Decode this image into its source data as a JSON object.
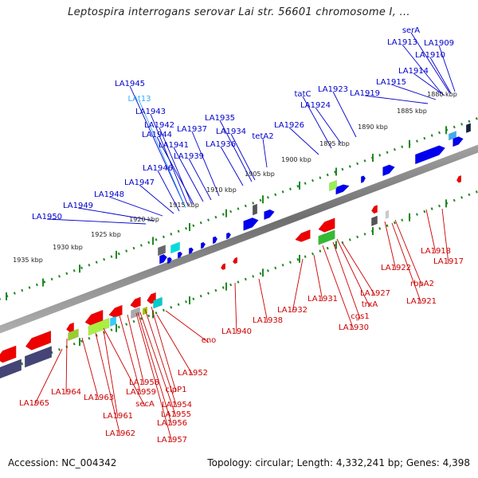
{
  "title": "Leptospira interrogans serovar Lai str. 56601 chromosome I, ...",
  "footer": {
    "accession": "Accession: NC_004342",
    "summary": "Topology: circular; Length: 4,332,241 bp; Genes: 4,398"
  },
  "colors": {
    "forward_label": "#0000cc",
    "reverse_label": "#cc0000",
    "trna_label": "#33aaff",
    "forward_gene": "#0000ee",
    "reverse_gene": "#ee0000",
    "axis": "#7a7a7a",
    "tick": "#228822"
  },
  "ticks": [
    "1880 kbp",
    "1885 kbp",
    "1890 kbp",
    "1895 kbp",
    "1900 kbp",
    "1905 kbp",
    "1910 kbp",
    "1915 kbp",
    "1920 kbp",
    "1925 kbp",
    "1930 kbp",
    "1935 kbp"
  ],
  "forward_labels": [
    "serA",
    "LA1913",
    "LA1909",
    "LA1910",
    "LA1914",
    "LA1915",
    "LA1919",
    "LA1923",
    "tatC",
    "LA1924",
    "LA1926",
    "tetA2",
    "LA1935",
    "LA1934",
    "LA1936",
    "LA1937",
    "LA1939",
    "LA1941",
    "LA1942",
    "LA1944",
    "LA1943",
    "LA1945",
    "LA1946",
    "LA1947",
    "LA1948",
    "LA1949",
    "LA1950"
  ],
  "trna_labels": [
    "LAt13"
  ],
  "reverse_labels": [
    "LA1918",
    "LA1917",
    "LA1922",
    "rbpA2",
    "LA1921",
    "LA1927",
    "trxA",
    "cgs1",
    "LA1930",
    "LA1931",
    "LA1932",
    "LA1938",
    "LA1940",
    "eno",
    "LA1952",
    "clpP1",
    "LA1954",
    "LA1955",
    "LA1956",
    "LA1957",
    "LA1958",
    "LA1959",
    "secA",
    "LA1961",
    "LA1962",
    "LA1963",
    "LA1964",
    "LA1965"
  ]
}
